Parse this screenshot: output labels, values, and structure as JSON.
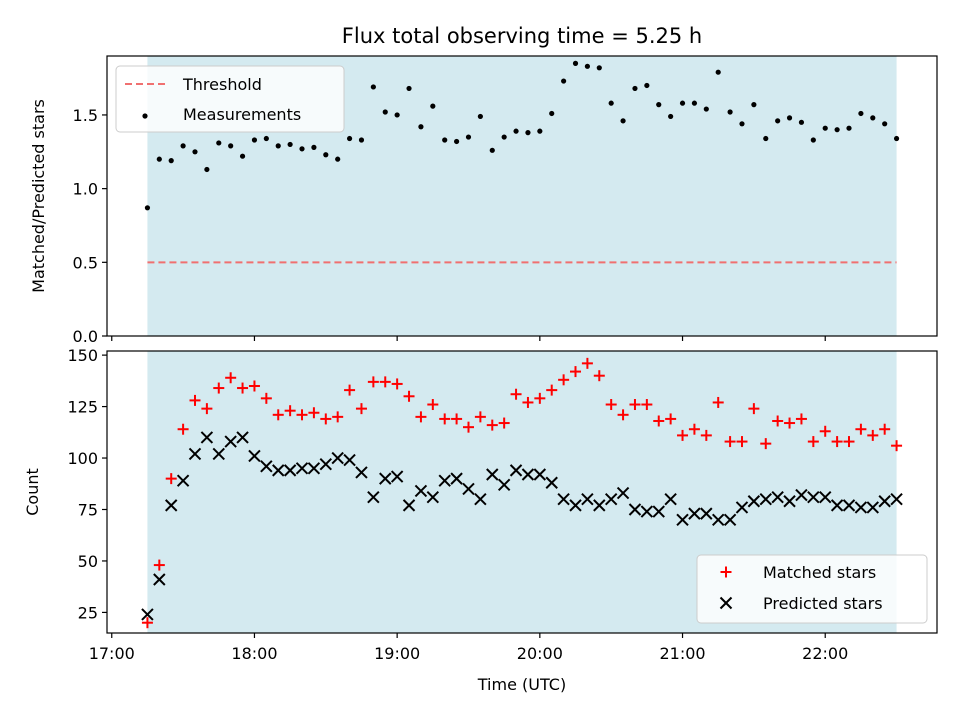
{
  "chart_data": {
    "type": "scatter",
    "title": "Flux total observing time = 5.25 h",
    "xlabel": "Time (UTC)",
    "x_ticks": [
      "17:00",
      "18:00",
      "19:00",
      "20:00",
      "21:00",
      "22:00"
    ],
    "observing_window": [
      "17:15",
      "22:30"
    ],
    "shade_color": "#d4eaf0",
    "grid": false,
    "x": [
      "17:15",
      "17:20",
      "17:25",
      "17:30",
      "17:35",
      "17:40",
      "17:45",
      "17:50",
      "17:55",
      "18:00",
      "18:05",
      "18:10",
      "18:15",
      "18:20",
      "18:25",
      "18:30",
      "18:35",
      "18:40",
      "18:45",
      "18:50",
      "18:55",
      "19:00",
      "19:05",
      "19:10",
      "19:15",
      "19:20",
      "19:25",
      "19:30",
      "19:35",
      "19:40",
      "19:45",
      "19:50",
      "19:55",
      "20:00",
      "20:05",
      "20:10",
      "20:15",
      "20:20",
      "20:25",
      "20:30",
      "20:35",
      "20:40",
      "20:45",
      "20:50",
      "20:55",
      "21:00",
      "21:05",
      "21:10",
      "21:15",
      "21:20",
      "21:25",
      "21:30",
      "21:35",
      "21:40",
      "21:45",
      "21:50",
      "21:55",
      "22:00",
      "22:05",
      "22:10",
      "22:15",
      "22:20",
      "22:25",
      "22:30"
    ],
    "panels": [
      {
        "ylabel": "Matched/Predicted stars",
        "ylim": [
          0,
          1.9
        ],
        "y_ticks": [
          "0.0",
          "0.5",
          "1.0",
          "1.5"
        ],
        "y_tick_values": [
          0,
          0.5,
          1.0,
          1.5
        ],
        "legend_position": "top-left",
        "threshold": {
          "name": "Threshold",
          "value": 0.5,
          "color": "#f07070",
          "style": "dashed"
        },
        "series": [
          {
            "name": "Measurements",
            "marker": "dot",
            "color": "#000000",
            "values": [
              0.87,
              1.2,
              1.19,
              1.29,
              1.25,
              1.13,
              1.31,
              1.29,
              1.22,
              1.33,
              1.34,
              1.29,
              1.3,
              1.27,
              1.28,
              1.23,
              1.2,
              1.34,
              1.33,
              1.69,
              1.52,
              1.5,
              1.68,
              1.42,
              1.56,
              1.33,
              1.32,
              1.35,
              1.49,
              1.26,
              1.35,
              1.39,
              1.38,
              1.39,
              1.51,
              1.73,
              1.85,
              1.83,
              1.82,
              1.58,
              1.46,
              1.68,
              1.7,
              1.57,
              1.49,
              1.58,
              1.58,
              1.54,
              1.79,
              1.52,
              1.44,
              1.57,
              1.34,
              1.46,
              1.48,
              1.45,
              1.33,
              1.41,
              1.4,
              1.41,
              1.51,
              1.48,
              1.44,
              1.34
            ]
          }
        ]
      },
      {
        "ylabel": "Count",
        "ylim": [
          15,
          152
        ],
        "y_ticks": [
          "25",
          "50",
          "75",
          "100",
          "125",
          "150"
        ],
        "y_tick_values": [
          25,
          50,
          75,
          100,
          125,
          150
        ],
        "legend_position": "bottom-right",
        "series": [
          {
            "name": "Matched stars",
            "marker": "plus",
            "color": "#ff0000",
            "values": [
              20,
              48,
              90,
              114,
              128,
              124,
              134,
              139,
              134,
              135,
              129,
              121,
              123,
              121,
              122,
              119,
              120,
              133,
              124,
              137,
              137,
              136,
              130,
              120,
              126,
              119,
              119,
              115,
              120,
              116,
              117,
              131,
              127,
              129,
              133,
              138,
              142,
              146,
              140,
              126,
              121,
              126,
              126,
              118,
              119,
              111,
              114,
              111,
              127,
              108,
              108,
              124,
              107,
              118,
              117,
              119,
              108,
              113,
              108,
              108,
              114,
              111,
              114,
              106
            ]
          },
          {
            "name": "Predicted stars",
            "marker": "x",
            "color": "#000000",
            "values": [
              24,
              41,
              77,
              89,
              102,
              110,
              102,
              108,
              110,
              101,
              96,
              94,
              94,
              95,
              95,
              97,
              100,
              99,
              93,
              81,
              90,
              91,
              77,
              84,
              81,
              89,
              90,
              85,
              80,
              92,
              87,
              94,
              92,
              92,
              88,
              80,
              77,
              80,
              77,
              80,
              83,
              75,
              74,
              74,
              80,
              70,
              73,
              73,
              70,
              70,
              76,
              79,
              80,
              81,
              79,
              82,
              81,
              81,
              77,
              77,
              76,
              76,
              79,
              80
            ]
          }
        ]
      }
    ]
  }
}
